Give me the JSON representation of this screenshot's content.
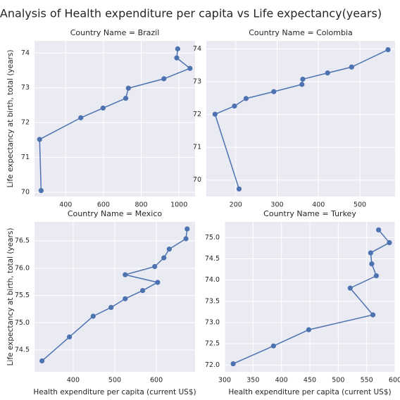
{
  "figure": {
    "title": "Analysis of Health expenditure per capita vs Life expectancy(years)",
    "background": "#ffffff",
    "panel_background": "#eaeaf2",
    "grid_color": "#ffffff",
    "line_color": "#4c72b0"
  },
  "chart_data": [
    {
      "type": "line",
      "title": "Country Name = Brazil",
      "xlabel": "",
      "ylabel": "Life expectancy at birth, total (years)",
      "xlim": [
        235,
        1085
      ],
      "ylim": [
        69.88,
        74.35
      ],
      "xticks": [
        400,
        600,
        800,
        1000
      ],
      "xticklabels": [
        "400",
        "600",
        "800",
        "1000"
      ],
      "yticks": [
        70,
        71,
        72,
        73,
        74
      ],
      "yticklabels": [
        "70",
        "71",
        "72",
        "73",
        "74"
      ],
      "grid": true,
      "series": [
        {
          "x": [
            270,
            262,
            480,
            598,
            718,
            732,
            920,
            1058,
            988,
            993
          ],
          "y": [
            70.05,
            71.52,
            72.14,
            72.42,
            72.7,
            72.99,
            73.26,
            73.56,
            73.86,
            74.12
          ]
        }
      ]
    },
    {
      "type": "line",
      "title": "Country Name = Colombia",
      "xlabel": "",
      "ylabel": "",
      "xlim": [
        129,
        585
      ],
      "ylim": [
        69.5,
        74.25
      ],
      "xticks": [
        200,
        300,
        400,
        500
      ],
      "xticklabels": [
        "200",
        "300",
        "400",
        "500"
      ],
      "yticks": [
        70,
        71,
        72,
        73,
        74
      ],
      "yticklabels": [
        "70",
        "71",
        "72",
        "73",
        "74"
      ],
      "grid": true,
      "series": [
        {
          "x": [
            208,
            150,
            197,
            225,
            292,
            360,
            362,
            422,
            480,
            568
          ],
          "y": [
            69.73,
            72.01,
            72.26,
            72.49,
            72.7,
            72.92,
            73.08,
            73.27,
            73.45,
            73.98
          ]
        }
      ]
    },
    {
      "type": "line",
      "title": "Country Name = Mexico",
      "xlabel": "Health expenditure per capita (current US$)",
      "ylabel": "Life expectancy at birth, total (years)",
      "xlim": [
        307,
        693
      ],
      "ylim": [
        74.1,
        76.85
      ],
      "xticks": [
        400,
        500,
        600
      ],
      "xticklabels": [
        "400",
        "500",
        "600"
      ],
      "yticks": [
        74.5,
        75.0,
        75.5,
        76.0,
        76.5
      ],
      "yticklabels": [
        "74.5",
        "75.0",
        "75.5",
        "76.0",
        "76.5"
      ],
      "grid": true,
      "series": [
        {
          "x": [
            325,
            391,
            448,
            491,
            525,
            567,
            603,
            525,
            596,
            618,
            631,
            671,
            674
          ],
          "y": [
            74.3,
            74.74,
            75.12,
            75.28,
            75.44,
            75.59,
            75.74,
            75.88,
            76.03,
            76.19,
            76.35,
            76.54,
            76.72
          ]
        }
      ]
    },
    {
      "type": "line",
      "title": "Country Name = Turkey",
      "xlabel": "Health expenditure per capita (current US$)",
      "ylabel": "",
      "xlim": [
        300,
        600
      ],
      "ylim": [
        71.84,
        75.37
      ],
      "xticks": [
        300,
        350,
        400,
        450,
        500,
        550,
        600
      ],
      "xticklabels": [
        "300",
        "350",
        "400",
        "450",
        "500",
        "550",
        "600"
      ],
      "yticks": [
        72.0,
        72.5,
        73.0,
        73.5,
        74.0,
        74.5,
        75.0
      ],
      "yticklabels": [
        "72.0",
        "72.5",
        "73.0",
        "73.5",
        "74.0",
        "74.5",
        "75.0"
      ],
      "grid": true,
      "series": [
        {
          "x": [
            315,
            386,
            448,
            561,
            521,
            567,
            559,
            557,
            590,
            571
          ],
          "y": [
            72.03,
            72.45,
            72.83,
            73.18,
            73.81,
            74.1,
            74.38,
            74.64,
            74.88,
            75.18
          ]
        }
      ]
    }
  ]
}
